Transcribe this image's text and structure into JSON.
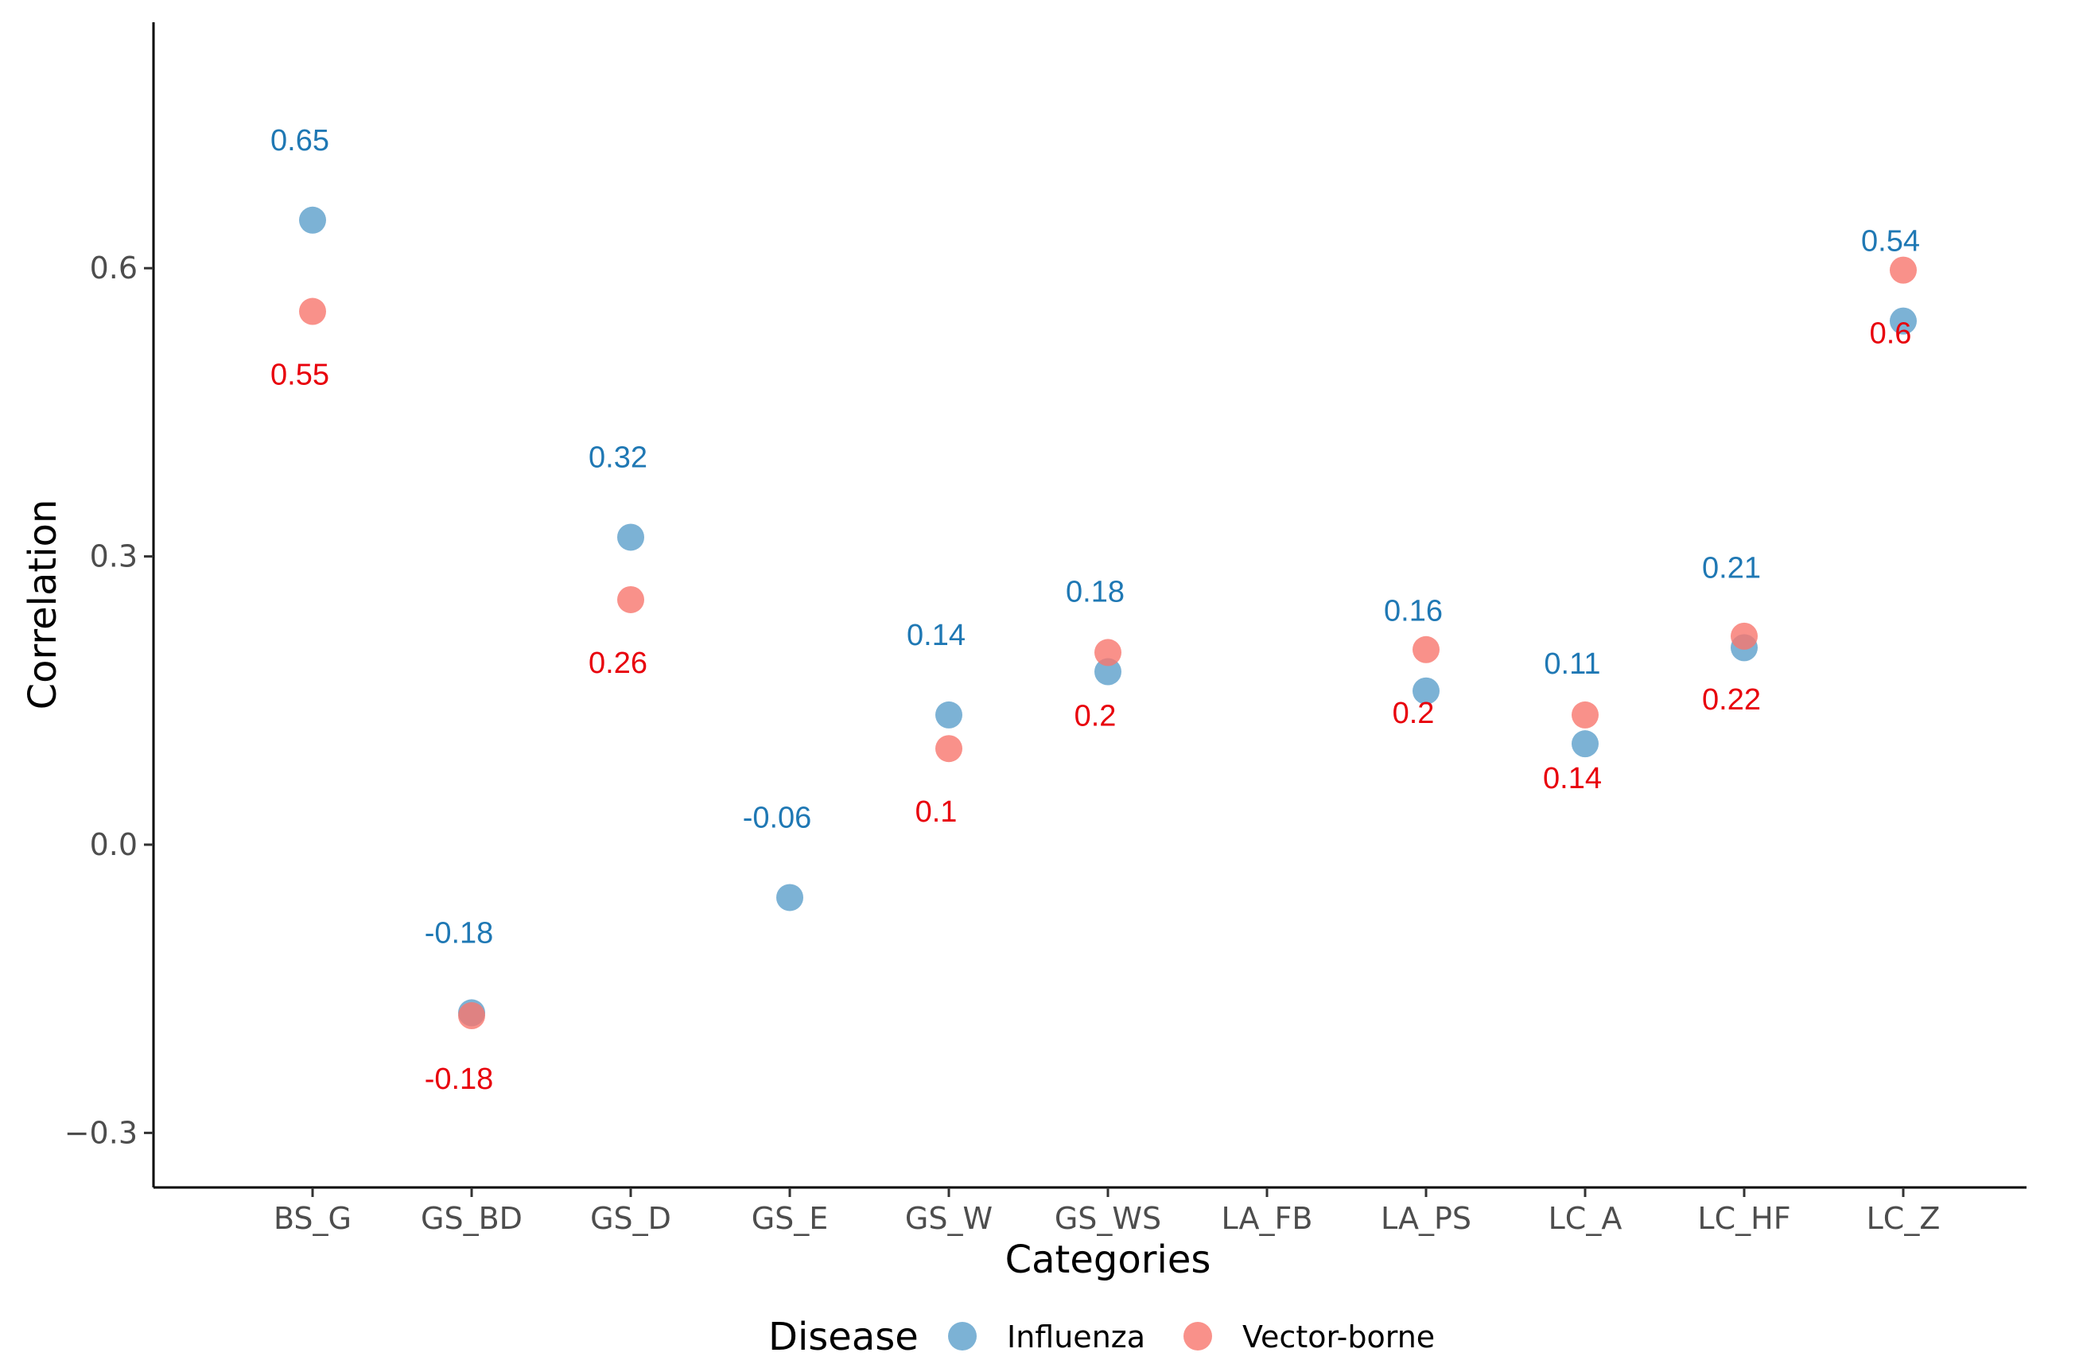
{
  "chart_data": {
    "type": "scatter",
    "title": "",
    "xlabel": "Categories",
    "ylabel": "Correlation",
    "categories": [
      "BS_G",
      "GS_BD",
      "GS_D",
      "GS_E",
      "GS_W",
      "GS_WS",
      "LA_FB",
      "LA_PS",
      "LC_A",
      "LC_HF",
      "LC_Z"
    ],
    "ylim": [
      -0.35,
      0.85
    ],
    "yticks": [
      -0.3,
      0.0,
      0.3,
      0.6
    ],
    "ytick_labels": [
      "−0.3",
      "0.0",
      "0.3",
      "0.6"
    ],
    "grid": false,
    "legend": {
      "title": "Disease",
      "position": "bottom"
    },
    "series": [
      {
        "name": "Influenza",
        "color": "#5B9FCB",
        "label_color": "#1F78B4",
        "values": [
          0.65,
          -0.175,
          0.32,
          -0.055,
          0.135,
          0.18,
          null,
          0.16,
          0.105,
          0.205,
          0.545
        ],
        "labels": [
          "0.65",
          "-0.18",
          "0.32",
          "-0.06",
          "0.14",
          "0.18",
          null,
          "0.16",
          "0.11",
          "0.21",
          "0.54"
        ]
      },
      {
        "name": "Vector-borne",
        "color": "#F8766D",
        "label_color": "#E8000B",
        "values": [
          0.555,
          -0.178,
          0.255,
          null,
          0.1,
          0.2,
          null,
          0.203,
          0.135,
          0.217,
          0.598
        ],
        "labels": [
          "0.55",
          "-0.18",
          "0.26",
          null,
          "0.1",
          "0.2",
          null,
          "0.2",
          "0.14",
          "0.22",
          "0.6"
        ]
      }
    ]
  }
}
